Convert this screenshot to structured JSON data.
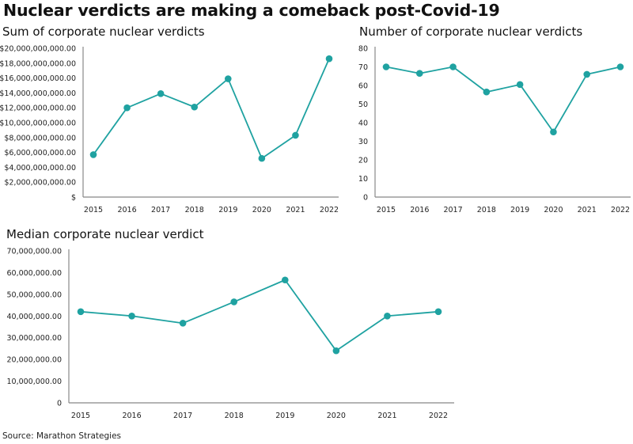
{
  "header": {
    "title": "Nuclear verdicts are making a comeback post-Covid-19"
  },
  "footer": {
    "source": "Source: Marathon Strategies"
  },
  "colors": {
    "series": "#1fa2a1",
    "axis": "#888888"
  },
  "chart_data": [
    {
      "type": "line",
      "title": "Sum of corporate nuclear verdicts",
      "xlabel": "",
      "ylabel": "",
      "categories": [
        "2015",
        "2016",
        "2017",
        "2018",
        "2019",
        "2020",
        "2021",
        "2022"
      ],
      "values": [
        5700000000,
        12000000000,
        13900000000,
        12100000000,
        15900000000,
        5200000000,
        8300000000,
        18600000000
      ],
      "ylim": [
        0,
        20000000000
      ],
      "yticks": [
        0,
        2000000000,
        4000000000,
        6000000000,
        8000000000,
        10000000000,
        12000000000,
        14000000000,
        16000000000,
        18000000000,
        20000000000
      ],
      "ytick_labels": [
        "$",
        "$2,000,000,000.00",
        "$4,000,000,000.00",
        "$6,000,000,000.00",
        "$8,000,000,000.00",
        "$10,000,000,000.00",
        "$12,000,000,000.00",
        "$14,000,000,000.00",
        "$16,000,000,000.00",
        "$18,000,000,000.00",
        "$20,000,000,000.00"
      ],
      "grid": false,
      "legend": "none"
    },
    {
      "type": "line",
      "title": "Number of corporate nuclear verdicts",
      "xlabel": "",
      "ylabel": "",
      "categories": [
        "2015",
        "2016",
        "2017",
        "2018",
        "2019",
        "2020",
        "2021",
        "2022"
      ],
      "values": [
        70,
        66.5,
        70,
        56.5,
        60.5,
        35,
        66,
        70
      ],
      "ylim": [
        0,
        80
      ],
      "yticks": [
        0,
        10,
        20,
        30,
        40,
        50,
        60,
        70,
        80
      ],
      "ytick_labels": [
        "0",
        "10",
        "20",
        "30",
        "40",
        "50",
        "60",
        "70",
        "80"
      ],
      "grid": false,
      "legend": "none"
    },
    {
      "type": "line",
      "title": "Median corporate nuclear verdict",
      "xlabel": "",
      "ylabel": "",
      "categories": [
        "2015",
        "2016",
        "2017",
        "2018",
        "2019",
        "2020",
        "2021",
        "2022"
      ],
      "values": [
        42000000,
        40000000,
        36700000,
        46500000,
        56600000,
        24000000,
        40000000,
        42000000
      ],
      "ylim": [
        0,
        70000000
      ],
      "yticks": [
        0,
        10000000,
        20000000,
        30000000,
        40000000,
        50000000,
        60000000,
        70000000
      ],
      "ytick_labels": [
        "0",
        "10,000,000.00",
        "20,000,000.00",
        "30,000,000.00",
        "40,000,000.00",
        "50,000,000.00",
        "60,000,000.00",
        "70,000,000.00"
      ],
      "grid": false,
      "legend": "none"
    }
  ]
}
